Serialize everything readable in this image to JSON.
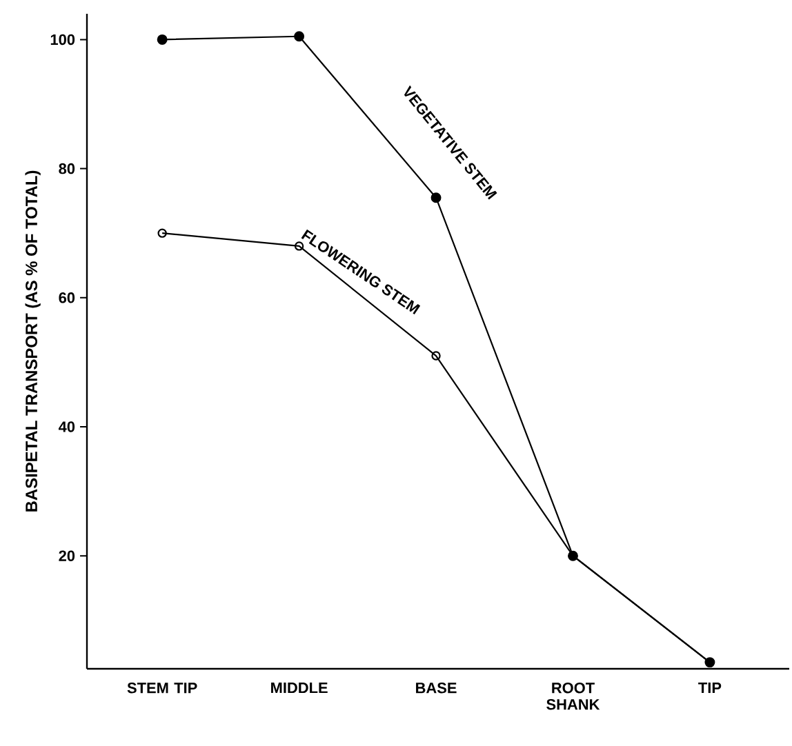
{
  "chart_data": {
    "type": "line",
    "ylabel": "BASIPETAL TRANSPORT (AS % OF TOTAL)",
    "categories": [
      "STEM TIP",
      "MIDDLE",
      "BASE",
      "ROOT SHANK",
      "TIP"
    ],
    "series": [
      {
        "name": "FLOWERING STEM",
        "color": "#000000",
        "marker": "open_circle",
        "values": [
          70,
          68,
          51,
          20,
          3.5
        ]
      },
      {
        "name": "VEGETATIVE STEM",
        "color": "#000000",
        "marker": "circle",
        "values": [
          100,
          100.5,
          75.5,
          20,
          3.5
        ]
      }
    ],
    "ylim": [
      2.5,
      104
    ],
    "yticks": [
      20,
      40,
      60,
      80,
      100
    ],
    "grid": false,
    "legend": false,
    "line_style": "solid"
  }
}
